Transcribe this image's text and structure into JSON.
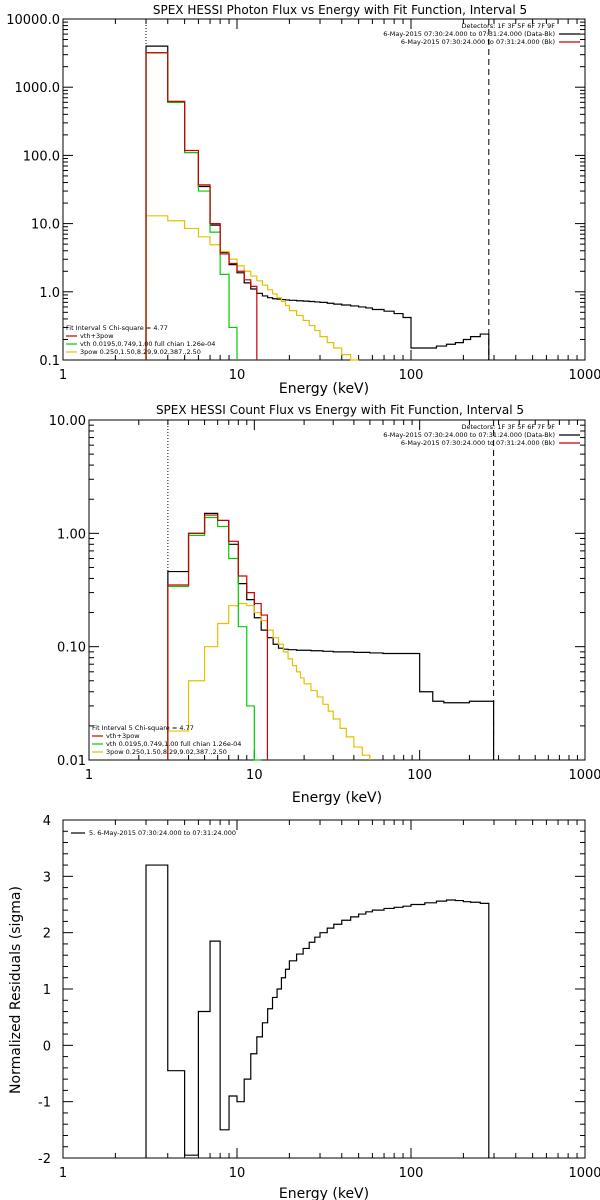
{
  "colors": {
    "total": "#000000",
    "thermal": "#00cc00",
    "power_law": "#e6c000",
    "fit_total": "#cc0000",
    "background": "#ffffff",
    "axis": "#000000"
  },
  "chart_data": [
    {
      "type": "line",
      "title": "SPEX HESSI Photon Flux vs Energy with Fit Function, Interval 5",
      "xlabel": "Energy (keV)",
      "ylabel": "",
      "xscale": "log",
      "yscale": "log",
      "xlim": [
        1,
        1000
      ],
      "ylim": [
        0.1,
        10000
      ],
      "x_tick_labels": [
        "1",
        "10",
        "100",
        "1000"
      ],
      "y_tick_labels": [
        "0.1",
        "1.0",
        "10.0",
        "100.0",
        "1000.0",
        "10000.0"
      ],
      "legend_topright": [
        "Detectors: 1F 3F 5F 6F 7F 9F",
        "6-May-2015 07:30:24.000 to 07:31:24.000 (Data-Bk)",
        "6-May-2015 07:30:24.000 to 07:31:24.000 (Bk)"
      ],
      "legend_bottomleft": [
        "Fit Interval 5   Chi-square = 4.77",
        "vth+3pow",
        "vth 0.0195,0.749,1.00  full chian 1.26e-04",
        "3pow 0.250,1.50,8.29,9.02,387.,2.50"
      ],
      "annotation_lines": [
        {
          "x": 3,
          "style": "dotted"
        },
        {
          "x": 280,
          "style": "dashed"
        }
      ],
      "edges": [
        3,
        4,
        5,
        6,
        7,
        8,
        9,
        10,
        11,
        12,
        13,
        14,
        15,
        16,
        17,
        18,
        19,
        20,
        22,
        24,
        26,
        28,
        30,
        33,
        36,
        40,
        45,
        50,
        55,
        60,
        70,
        80,
        90,
        100,
        120,
        140,
        160,
        180,
        200,
        220,
        250,
        280
      ],
      "series": [
        {
          "name": "Data-Bk",
          "color_key": "total",
          "values": [
            4000,
            600,
            110,
            35,
            9.5,
            3.8,
            2.5,
            1.9,
            1.35,
            1.1,
            0.95,
            0.87,
            0.82,
            0.79,
            0.78,
            0.77,
            0.76,
            0.75,
            0.74,
            0.73,
            0.72,
            0.71,
            0.7,
            0.68,
            0.66,
            0.64,
            0.62,
            0.6,
            0.58,
            0.55,
            0.52,
            0.48,
            0.42,
            0.15,
            0.15,
            0.16,
            0.17,
            0.18,
            0.2,
            0.22,
            0.24
          ]
        },
        {
          "name": "vth+3pow",
          "color_key": "fit_total",
          "values": [
            3200,
            620,
            118,
            37,
            10,
            3.6,
            2.6,
            2.0,
            1.5,
            1.2
          ]
        },
        {
          "name": "vth",
          "color_key": "thermal",
          "values": [
            3200,
            600,
            110,
            30,
            7.5,
            1.8,
            0.3
          ]
        },
        {
          "name": "3pow",
          "color_key": "power_law",
          "values": [
            13,
            11,
            8.5,
            6.4,
            4.9,
            3.9,
            3.0,
            2.4,
            2.0,
            1.7,
            1.45,
            1.25,
            1.07,
            0.93,
            0.82,
            0.72,
            0.63,
            0.53,
            0.45,
            0.38,
            0.32,
            0.27,
            0.22,
            0.18,
            0.15,
            0.12,
            0.1
          ]
        }
      ]
    },
    {
      "type": "line",
      "title": "SPEX HESSI Count Flux vs Energy with Fit Function, Interval 5",
      "xlabel": "Energy (keV)",
      "ylabel": "",
      "xscale": "log",
      "yscale": "log",
      "xlim": [
        1,
        1000
      ],
      "ylim": [
        0.01,
        10
      ],
      "x_tick_labels": [
        "1",
        "10",
        "100",
        "1000"
      ],
      "y_tick_labels": [
        "0.01",
        "0.10",
        "1.00",
        "10.00"
      ],
      "legend_topright": [
        "Detectors: 1F 3F 5F 6F 7F 9F",
        "6-May-2015 07:30:24.000 to 07:31:24.000 (Data-Bk)",
        "6-May-2015 07:30:24.000 to 07:31:24.000 (Bk)"
      ],
      "legend_bottomleft": [
        "Fit Interval 5   Chi-square = 4.77",
        "vth+3pow",
        "vth 0.0195,0.749,1.00  full chian 1.26e-04",
        "3pow 0.250,1.50,8.29,9.02,387.,2.50"
      ],
      "annotation_lines": [
        {
          "x": 3,
          "style": "dotted"
        },
        {
          "x": 280,
          "style": "dashed"
        }
      ],
      "edges": [
        3,
        4,
        5,
        6,
        7,
        8,
        9,
        10,
        11,
        12,
        13,
        14,
        15,
        16,
        17,
        18,
        19,
        20,
        22,
        24,
        26,
        28,
        30,
        33,
        36,
        40,
        45,
        50,
        55,
        60,
        70,
        80,
        90,
        100,
        120,
        140,
        160,
        180,
        200,
        220,
        250,
        280
      ],
      "series": [
        {
          "name": "Data-Bk",
          "color_key": "total",
          "values": [
            0.46,
            1.0,
            1.5,
            1.3,
            0.8,
            0.36,
            0.26,
            0.18,
            0.14,
            0.12,
            0.105,
            0.097,
            0.095,
            0.094,
            0.094,
            0.093,
            0.093,
            0.093,
            0.092,
            0.092,
            0.091,
            0.091,
            0.09,
            0.09,
            0.09,
            0.089,
            0.089,
            0.088,
            0.088,
            0.087,
            0.087,
            0.087,
            0.087,
            0.04,
            0.033,
            0.032,
            0.032,
            0.032,
            0.033,
            0.033,
            0.033
          ]
        },
        {
          "name": "vth+3pow",
          "color_key": "fit_total",
          "values": [
            0.35,
            1.0,
            1.45,
            1.3,
            0.85,
            0.42,
            0.3,
            0.24,
            0.19
          ]
        },
        {
          "name": "vth",
          "color_key": "thermal",
          "values": [
            0.34,
            0.96,
            1.38,
            1.15,
            0.6,
            0.15,
            0.03,
            0.01
          ]
        },
        {
          "name": "3pow",
          "color_key": "power_law",
          "values": [
            0.018,
            0.05,
            0.1,
            0.16,
            0.23,
            0.24,
            0.23,
            0.2,
            0.17,
            0.14,
            0.12,
            0.105,
            0.09,
            0.078,
            0.068,
            0.06,
            0.053,
            0.047,
            0.041,
            0.036,
            0.031,
            0.027,
            0.023,
            0.019,
            0.016,
            0.013,
            0.011
          ]
        }
      ]
    },
    {
      "type": "line",
      "title": "",
      "xlabel": "Energy (keV)",
      "ylabel": "Normalized Residuals (sigma)",
      "xscale": "log",
      "yscale": "linear",
      "xlim": [
        1,
        1000
      ],
      "ylim": [
        -2,
        4
      ],
      "x_tick_labels": [
        "1",
        "10",
        "100",
        "1000"
      ],
      "y_tick_labels": [
        "-2",
        "-1",
        "0",
        "1",
        "2",
        "3",
        "4"
      ],
      "legend_topleft": "5.  6-May-2015 07:30:24.000 to 07:31:24.000",
      "edges": [
        3,
        4,
        5,
        6,
        7,
        8,
        9,
        10,
        11,
        12,
        13,
        14,
        15,
        16,
        17,
        18,
        19,
        20,
        22,
        24,
        26,
        28,
        30,
        33,
        36,
        40,
        45,
        50,
        55,
        60,
        70,
        80,
        90,
        100,
        120,
        140,
        160,
        180,
        200,
        220,
        250,
        280
      ],
      "series": [
        {
          "name": "5.  6-May-2015 07:30:24.000 to 07:31:24.000",
          "color_key": "total",
          "values": [
            3.2,
            -0.45,
            -1.95,
            0.6,
            1.85,
            -1.5,
            -0.9,
            -1.0,
            -0.6,
            -0.15,
            0.15,
            0.4,
            0.65,
            0.85,
            1.0,
            1.2,
            1.35,
            1.5,
            1.62,
            1.72,
            1.83,
            1.92,
            2.0,
            2.08,
            2.15,
            2.22,
            2.28,
            2.33,
            2.37,
            2.4,
            2.43,
            2.45,
            2.47,
            2.5,
            2.53,
            2.56,
            2.58,
            2.57,
            2.55,
            2.54,
            2.52
          ]
        }
      ]
    }
  ]
}
